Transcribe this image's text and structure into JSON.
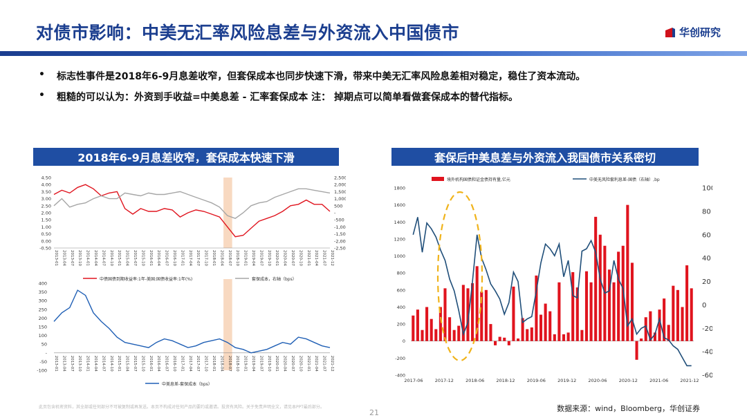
{
  "header": {
    "title": "对债市影响：中美无汇率风险息差与外资流入中国债市",
    "logo_text": "华创研究",
    "brand_color": "#1b3e8f",
    "logo_color": "#d0121b"
  },
  "bullets": [
    {
      "marker": "•",
      "text": "标志性事件是2018年6-9月息差收窄，但套保成本也同步快速下滑，带来中美无汇率风险息差相对稳定，稳住了资本流动。"
    },
    {
      "marker": "•",
      "text": "粗糙的可以认为：外资到手收益=中美息差 - 汇率套保成本    注： 掉期点可以简单看做套保成本的替代指标。"
    }
  ],
  "left_panel": {
    "title": "2018年6-9月息差收窄，套保成本快速下滑"
  },
  "right_panel": {
    "title": "套保后中美息差与外资流入我国债市关系密切"
  },
  "chart_data": [
    {
      "type": "line",
      "x_ticks": [
        "2013-01",
        "2013-04",
        "2013-07",
        "2013-10",
        "2014-01",
        "2014-04",
        "2014-07",
        "2014-10",
        "2015-01",
        "2015-04",
        "2015-07",
        "2015-10",
        "2016-01",
        "2016-04",
        "2016-07",
        "2016-10",
        "2017-01",
        "2017-04",
        "2017-07",
        "2017-10",
        "2018-01",
        "2018-04",
        "2018-07",
        "2018-10",
        "2019-01",
        "2019-04",
        "2019-07",
        "2019-10",
        "2020-01",
        "2020-04",
        "2020-07",
        "2020-10",
        "2021-01",
        "2021-04",
        "2021-07",
        "2021-12"
      ],
      "ylim_left": [
        -0.5,
        4.5
      ],
      "ylim_right": [
        -2500,
        2500
      ],
      "y_ticks_left": [
        "4.50",
        "4.00",
        "3.50",
        "3.00",
        "2.50",
        "2.00",
        "1.50",
        "1.00",
        "0.50",
        "0.00",
        "-0.50"
      ],
      "y_ticks_right": [
        "2,500",
        "2,000",
        "1,500",
        "1,000",
        "500",
        "-",
        "-500",
        "-1,000",
        "-1,500",
        "-2,000",
        "-2,500"
      ],
      "highlight_range": [
        "2018-06",
        "2018-09"
      ],
      "series": [
        {
          "name": "中债国债到期收益率:1年-美国:国债收益率:1年(%)",
          "color": "#e0141e",
          "axis": "left",
          "values": [
            3.3,
            3.6,
            3.4,
            3.8,
            4.0,
            3.7,
            3.2,
            3.4,
            3.5,
            2.3,
            1.9,
            2.3,
            2.1,
            2.1,
            2.3,
            2.2,
            1.7,
            2.0,
            2.2,
            2.1,
            1.9,
            1.7,
            1.0,
            0.3,
            0.4,
            0.9,
            1.4,
            1.6,
            1.8,
            2.1,
            2.5,
            2.6,
            2.9,
            2.6,
            2.6,
            2.1
          ]
        },
        {
          "name": "套保成本，右轴（bps）",
          "color": "#a6a6a6",
          "axis": "right",
          "values": [
            500,
            1000,
            400,
            600,
            700,
            1000,
            1200,
            1000,
            1000,
            1400,
            1300,
            1200,
            1400,
            1300,
            1300,
            1400,
            1500,
            1300,
            1100,
            900,
            700,
            400,
            -200,
            -400,
            0,
            500,
            700,
            800,
            1100,
            1300,
            1500,
            1700,
            1700,
            1600,
            1500,
            1400
          ]
        }
      ]
    },
    {
      "type": "line",
      "x_ticks": [
        "2013-01",
        "2013-04",
        "2013-07",
        "2013-10",
        "2014-01",
        "2014-04",
        "2014-07",
        "2014-10",
        "2015-01",
        "2015-04",
        "2015-07",
        "2015-10",
        "2016-01",
        "2016-04",
        "2016-07",
        "2016-10",
        "2017-01",
        "2017-04",
        "2017-07",
        "2017-10",
        "2018-01",
        "2018-04",
        "2018-07",
        "2018-10",
        "2019-01",
        "2019-04",
        "2019-07",
        "2019-10",
        "2020-01",
        "2020-04",
        "2020-07",
        "2020-10",
        "2021-01",
        "2021-04",
        "2021-07",
        "2021-12"
      ],
      "ylim": [
        -100,
        400
      ],
      "y_ticks": [
        "400",
        "350",
        "300",
        "250",
        "200",
        "150",
        "100",
        "50",
        "-",
        "-50",
        "-100"
      ],
      "series": [
        {
          "name": "中美息差-套保成本（bps）",
          "color": "#1f5fb5",
          "values": [
            180,
            230,
            260,
            360,
            330,
            230,
            180,
            140,
            90,
            60,
            50,
            40,
            30,
            60,
            80,
            70,
            50,
            30,
            40,
            60,
            70,
            80,
            60,
            30,
            20,
            0,
            10,
            20,
            40,
            60,
            50,
            90,
            80,
            60,
            40,
            30
          ]
        }
      ]
    },
    {
      "type": "bar",
      "x_ticks": [
        "2017-06",
        "2017-12",
        "2018-06",
        "2018-12",
        "2019-06",
        "2019-12",
        "2020-06",
        "2020-12",
        "2021-06",
        "2021-12"
      ],
      "ylim_left": [
        -400,
        1800
      ],
      "ylim_right": [
        -60,
        100
      ],
      "y_ticks_left": [
        "1800",
        "1600",
        "1400",
        "1200",
        "1000",
        "800",
        "600",
        "400",
        "200",
        "0",
        "-200",
        "-400"
      ],
      "y_ticks_right": [
        "100",
        "80",
        "60",
        "40",
        "20",
        "0",
        "-20",
        "-40",
        "-60"
      ],
      "series": [
        {
          "name": "境外机构国债和证金债持有量,亿元",
          "color": "#e0141e",
          "axis": "left",
          "values": [
            300,
            370,
            130,
            400,
            260,
            140,
            400,
            620,
            280,
            130,
            180,
            660,
            620,
            680,
            880,
            580,
            600,
            200,
            -50,
            50,
            40,
            -50,
            640,
            30,
            270,
            140,
            160,
            770,
            310,
            440,
            350,
            80,
            690,
            80,
            100,
            810,
            630,
            130,
            820,
            690,
            1460,
            1250,
            1120,
            840,
            690,
            1050,
            1120,
            1600,
            920,
            -220,
            30,
            280,
            350,
            100,
            370,
            500,
            190,
            650,
            600,
            400,
            890,
            620
          ]
        },
        {
          "name": "中美无风险套利息差-国债（右轴）,bp",
          "color": "#1f4e79",
          "axis": "right",
          "values": [
            60,
            75,
            45,
            70,
            65,
            58,
            47,
            38,
            22,
            12,
            -5,
            -25,
            -15,
            20,
            60,
            40,
            30,
            18,
            12,
            5,
            -8,
            2,
            28,
            20,
            -15,
            -12,
            -10,
            12,
            36,
            52,
            48,
            42,
            52,
            24,
            38,
            8,
            6,
            46,
            48,
            55,
            45,
            22,
            10,
            12,
            38,
            22,
            14,
            -18,
            -12,
            -25,
            -20,
            -18,
            -30,
            -25,
            -12,
            -28,
            -30,
            -35,
            -38,
            -45,
            -52,
            -52
          ]
        }
      ]
    }
  ],
  "footer": {
    "disclaimer": "此页包含机密资料，其全部或任何部分不可被复制或再发送。本页不构成对任何产品的要约或邀请。投资有风险。关于免责声明全文，请见本PPT最后部分。",
    "page_number": "21",
    "source": "数据来源：wind，Bloomberg，华创证券"
  }
}
